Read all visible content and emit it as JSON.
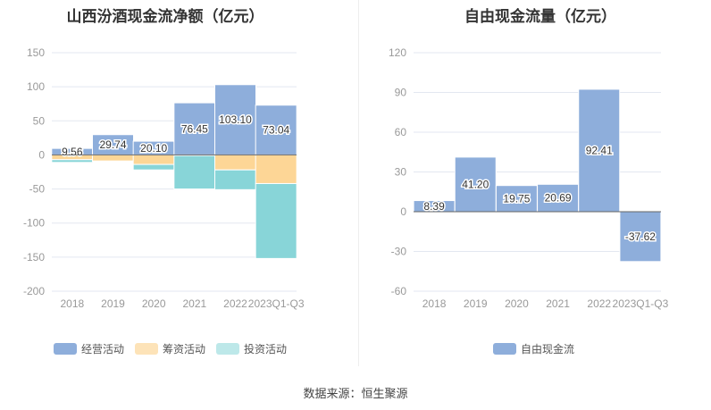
{
  "chart_data": [
    {
      "type": "bar",
      "stacked": true,
      "title": "山西汾酒现金流净额（亿元）",
      "categories": [
        "2018",
        "2019",
        "2020",
        "2021",
        "2022",
        "2023Q1-Q3"
      ],
      "series": [
        {
          "name": "经营活动",
          "color": "#8eaedb",
          "values": [
            9.56,
            29.74,
            20.1,
            76.45,
            103.1,
            73.04
          ],
          "labels": [
            "9.56",
            "29.74",
            "20.10",
            "76.45",
            "103.10",
            "73.04"
          ]
        },
        {
          "name": "筹资活动",
          "color": "#fdd696",
          "values": [
            -7,
            -9,
            -14,
            -1,
            -22,
            -42
          ]
        },
        {
          "name": "投资活动",
          "color": "#88d5d8",
          "values": [
            -4,
            -0.5,
            -8,
            -49,
            -29,
            -110
          ]
        }
      ],
      "ylim": [
        -200,
        150
      ],
      "yticks": [
        150,
        100,
        50,
        0,
        -50,
        -100,
        -150,
        -200
      ],
      "grid": true,
      "legend": "bottom"
    },
    {
      "type": "bar",
      "title": "自由现金流量（亿元）",
      "categories": [
        "2018",
        "2019",
        "2020",
        "2021",
        "2022",
        "2023Q1-Q3"
      ],
      "series": [
        {
          "name": "自由现金流",
          "color": "#8eaedb",
          "values": [
            8.39,
            41.2,
            19.75,
            20.69,
            92.41,
            -37.62
          ],
          "labels": [
            "8.39",
            "41.20",
            "19.75",
            "20.69",
            "92.41",
            "-37.62"
          ]
        }
      ],
      "ylim": [
        -60,
        120
      ],
      "yticks": [
        120,
        90,
        60,
        30,
        0,
        -30,
        -60
      ],
      "grid": true,
      "legend": "bottom"
    }
  ],
  "source": "数据来源：恒生聚源"
}
